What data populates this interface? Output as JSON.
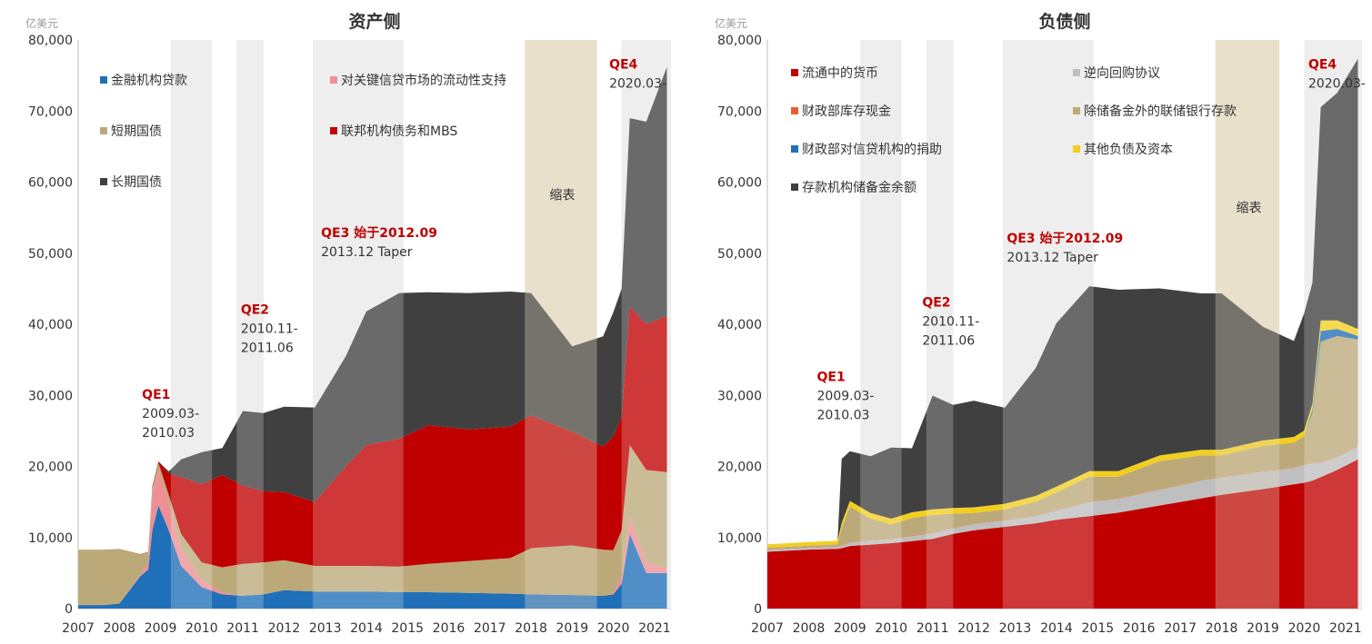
{
  "chart_data": [
    {
      "type": "area",
      "title": "资产侧",
      "unit": "亿美元",
      "ylim": [
        0,
        80000
      ],
      "yticks": [
        "0",
        "10,000",
        "20,000",
        "30,000",
        "40,000",
        "50,000",
        "60,000",
        "70,000",
        "80,000"
      ],
      "xticks": [
        "2007",
        "2008",
        "2009",
        "2010",
        "2011",
        "2012",
        "2013",
        "2014",
        "2015",
        "2016",
        "2017",
        "2018",
        "2019",
        "2020",
        "2021"
      ],
      "stacked": true,
      "x": [
        2007.0,
        2007.6,
        2008.0,
        2008.5,
        2008.7,
        2008.8,
        2008.95,
        2009.2,
        2009.5,
        2010.0,
        2010.5,
        2011.0,
        2011.5,
        2012.0,
        2012.75,
        2013.5,
        2014.0,
        2014.8,
        2015.5,
        2016.5,
        2017.5,
        2018.0,
        2019.0,
        2019.75,
        2020.0,
        2020.2,
        2020.4,
        2020.8,
        2021.3
      ],
      "series": [
        {
          "name": "金融机构贷款",
          "color": "#1f6fb9",
          "values": [
            500,
            500,
            700,
            4500,
            5500,
            11000,
            14500,
            11000,
            6000,
            3000,
            2000,
            1800,
            2000,
            2600,
            2400,
            2400,
            2400,
            2300,
            2300,
            2200,
            2100,
            2000,
            1900,
            1800,
            2000,
            3500,
            10500,
            5000,
            5000
          ]
        },
        {
          "name": "对关键信贷市场的流动性支持",
          "color": "#ee8f95",
          "values": [
            0,
            0,
            0,
            200,
            1000,
            5000,
            5000,
            4000,
            2500,
            1000,
            300,
            0,
            0,
            0,
            0,
            0,
            0,
            0,
            0,
            0,
            0,
            0,
            0,
            0,
            200,
            1000,
            2500,
            1500,
            700
          ]
        },
        {
          "name": "短期国债",
          "color": "#bca97a",
          "values": [
            7800,
            7800,
            7700,
            3000,
            1500,
            1000,
            1000,
            1000,
            2000,
            2500,
            3500,
            4500,
            4500,
            4200,
            3600,
            3600,
            3600,
            3600,
            4000,
            4500,
            5000,
            6500,
            7000,
            6500,
            6000,
            6500,
            10000,
            13000,
            13500
          ]
        },
        {
          "name": "联邦机构债务和MBS",
          "color": "#c00000",
          "values": [
            0,
            0,
            0,
            0,
            0,
            200,
            200,
            3000,
            8000,
            11000,
            13000,
            11000,
            10000,
            9600,
            9000,
            14000,
            17000,
            18000,
            19500,
            18500,
            18500,
            18700,
            16000,
            14500,
            16000,
            16000,
            19500,
            20500,
            22000
          ]
        },
        {
          "name": "长期国债",
          "color": "#404040",
          "values": [
            0,
            0,
            0,
            0,
            0,
            0,
            0,
            300,
            2500,
            4500,
            3800,
            10500,
            11000,
            12000,
            13300,
            15500,
            18800,
            20500,
            18700,
            19200,
            19000,
            17200,
            12000,
            15500,
            17500,
            18000,
            26500,
            28500,
            35000
          ]
        }
      ],
      "shaded_periods": [
        {
          "label": "QE1",
          "start": 2009.25,
          "end": 2010.25
        },
        {
          "label": "QE2",
          "start": 2010.85,
          "end": 2011.5
        },
        {
          "label": "QE3",
          "start": 2012.7,
          "end": 2014.9
        },
        {
          "label": "缩表",
          "start": 2017.85,
          "end": 2019.6,
          "tone": "tan"
        },
        {
          "label": "QE4",
          "start": 2020.2,
          "end": 2021.4
        }
      ],
      "annotations": [
        {
          "x": 2008.55,
          "y": 29500,
          "lines": [
            "QE1",
            "2009.03-",
            "2010.03"
          ],
          "first_color": "#c00000"
        },
        {
          "x": 2010.95,
          "y": 41500,
          "lines": [
            "QE2",
            "2010.11-",
            "2011.06"
          ],
          "first_color": "#c00000"
        },
        {
          "x": 2012.9,
          "y": 52300,
          "lines": [
            "QE3 始于2012.09",
            "2013.12 Taper"
          ],
          "first_color": "#c00000"
        },
        {
          "x": 2018.45,
          "y": 57600,
          "lines": [
            "缩表"
          ],
          "first_color": "#333333"
        },
        {
          "x": 2019.9,
          "y": 76000,
          "lines": [
            "QE4",
            "2020.03-"
          ],
          "first_color": "#c00000"
        }
      ],
      "legend": [
        {
          "label": "金融机构贷款",
          "color": "#1f6fb9"
        },
        {
          "label": "对关键信贷市场的流动性支持",
          "color": "#ee8f95"
        },
        {
          "label": "短期国债",
          "color": "#bca97a"
        },
        {
          "label": "联邦机构债务和MBS",
          "color": "#c00000"
        },
        {
          "label": "长期国债",
          "color": "#404040"
        }
      ]
    },
    {
      "type": "area",
      "title": "负债侧",
      "unit": "亿美元",
      "ylim": [
        0,
        80000
      ],
      "yticks": [
        "0",
        "10,000",
        "20,000",
        "30,000",
        "40,000",
        "50,000",
        "60,000",
        "70,000",
        "80,000"
      ],
      "xticks": [
        "2007",
        "2008",
        "2009",
        "2010",
        "2011",
        "2012",
        "2013",
        "2014",
        "2015",
        "2016",
        "2017",
        "2018",
        "2019",
        "2020",
        "2021"
      ],
      "stacked": true,
      "x": [
        2007.0,
        2008.0,
        2008.7,
        2008.8,
        2009.0,
        2009.5,
        2010.0,
        2010.5,
        2011.0,
        2011.5,
        2012.0,
        2012.75,
        2013.5,
        2014.0,
        2014.8,
        2015.5,
        2016.5,
        2017.5,
        2018.0,
        2019.0,
        2019.75,
        2020.0,
        2020.2,
        2020.4,
        2020.8,
        2021.3
      ],
      "series": [
        {
          "name": "流通中的货币",
          "color": "#c00000",
          "values": [
            8000,
            8300,
            8400,
            8500,
            8800,
            9000,
            9200,
            9500,
            9800,
            10500,
            11000,
            11500,
            12000,
            12500,
            13000,
            13500,
            14500,
            15500,
            16000,
            16800,
            17500,
            17700,
            18000,
            18500,
            19500,
            21000
          ]
        },
        {
          "name": "逆向回购协议",
          "color": "#bfbfbf",
          "values": [
            300,
            300,
            300,
            300,
            500,
            600,
            600,
            700,
            800,
            800,
            900,
            900,
            1000,
            1300,
            2000,
            2000,
            2200,
            2500,
            2500,
            2500,
            2300,
            2500,
            2500,
            2000,
            1800,
            1800
          ]
        },
        {
          "name": "财政部库存现金",
          "color": "#e8612a",
          "values": [
            50,
            50,
            50,
            50,
            50,
            50,
            50,
            50,
            50,
            50,
            50,
            50,
            50,
            50,
            50,
            50,
            50,
            50,
            50,
            50,
            50,
            50,
            50,
            50,
            50,
            50
          ]
        },
        {
          "name": "除储备金外的联储银行存款",
          "color": "#bca97a",
          "values": [
            200,
            200,
            300,
            2500,
            5000,
            3000,
            2000,
            2500,
            2500,
            2000,
            1500,
            1500,
            2000,
            2500,
            3500,
            3000,
            4000,
            3500,
            3000,
            3500,
            3500,
            4000,
            7000,
            17000,
            17000,
            15000
          ]
        },
        {
          "name": "财政部对信贷机构的捐助",
          "color": "#1f6fb9",
          "values": [
            0,
            0,
            0,
            0,
            0,
            0,
            0,
            0,
            0,
            0,
            0,
            0,
            0,
            0,
            0,
            0,
            0,
            0,
            0,
            0,
            0,
            0,
            500,
            1500,
            1000,
            500
          ]
        },
        {
          "name": "其他负债及资本",
          "color": "#f2cf1e",
          "values": [
            500,
            500,
            500,
            700,
            800,
            800,
            800,
            800,
            800,
            800,
            800,
            800,
            800,
            800,
            800,
            800,
            800,
            800,
            800,
            800,
            800,
            800,
            800,
            1500,
            1200,
            1000
          ]
        },
        {
          "name": "存款机构储备金余额",
          "color": "#404040",
          "values": [
            0,
            0,
            0,
            9000,
            7000,
            8000,
            10000,
            9000,
            16000,
            14500,
            15000,
            13500,
            18000,
            23000,
            26000,
            25500,
            23500,
            22000,
            22000,
            16000,
            13500,
            16500,
            17000,
            30000,
            32000,
            38000
          ]
        }
      ],
      "shaded_periods": [
        {
          "label": "QE1",
          "start": 2009.25,
          "end": 2010.25
        },
        {
          "label": "QE2",
          "start": 2010.85,
          "end": 2011.5
        },
        {
          "label": "QE3",
          "start": 2012.7,
          "end": 2014.9
        },
        {
          "label": "缩表",
          "start": 2017.85,
          "end": 2019.4,
          "tone": "tan"
        },
        {
          "label": "QE4",
          "start": 2020.0,
          "end": 2021.4
        }
      ],
      "annotations": [
        {
          "x": 2008.2,
          "y": 32000,
          "lines": [
            "QE1",
            "2009.03-",
            "2010.03"
          ],
          "first_color": "#c00000"
        },
        {
          "x": 2010.75,
          "y": 42500,
          "lines": [
            "QE2",
            "2010.11-",
            "2011.06"
          ],
          "first_color": "#c00000"
        },
        {
          "x": 2012.8,
          "y": 51500,
          "lines": [
            "QE3 始于2012.09",
            "2013.12 Taper"
          ],
          "first_color": "#c00000"
        },
        {
          "x": 2018.35,
          "y": 55800,
          "lines": [
            "缩表"
          ],
          "first_color": "#333333"
        },
        {
          "x": 2020.1,
          "y": 76000,
          "lines": [
            "QE4",
            "2020.03-"
          ],
          "first_color": "#c00000"
        }
      ],
      "legend": [
        {
          "label": "流通中的货币",
          "color": "#c00000"
        },
        {
          "label": "逆向回购协议",
          "color": "#bfbfbf"
        },
        {
          "label": "财政部库存现金",
          "color": "#e8612a"
        },
        {
          "label": "除储备金外的联储银行存款",
          "color": "#bca97a"
        },
        {
          "label": "财政部对信贷机构的捐助",
          "color": "#1f6fb9"
        },
        {
          "label": "其他负债及资本",
          "color": "#f2cf1e"
        },
        {
          "label": "存款机构储备金余额",
          "color": "#404040"
        }
      ]
    }
  ]
}
